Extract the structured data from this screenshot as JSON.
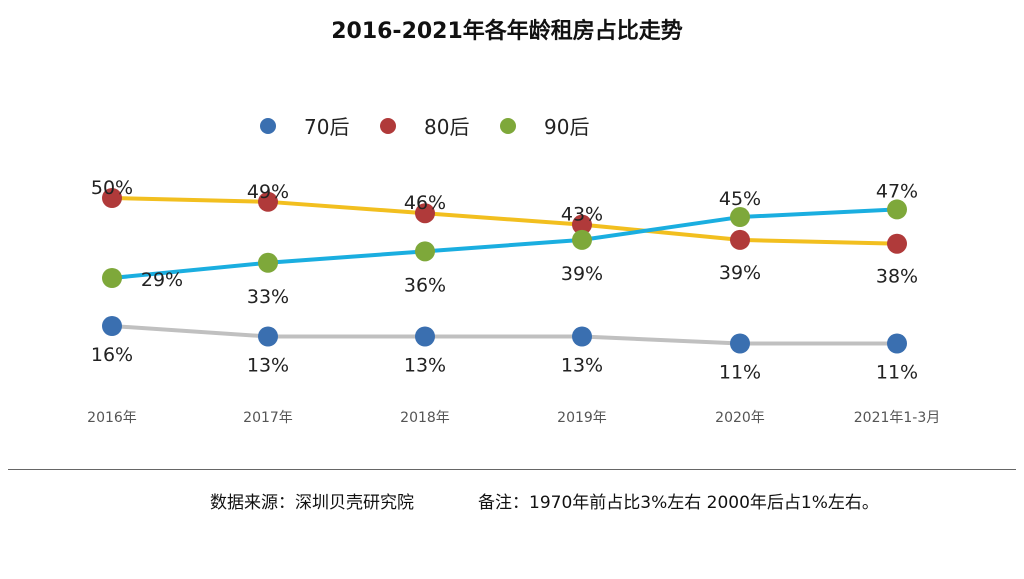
{
  "footer": {
    "source": "数据来源：深圳贝壳研究院",
    "note": "备注：1970年前占比3%左右  2000年后占1%左右。"
  },
  "chart_data": {
    "type": "line",
    "title": "2016-2021年各年龄租房占比走势",
    "categories": [
      "2016年",
      "2017年",
      "2018年",
      "2019年",
      "2020年",
      "2021年1-3月"
    ],
    "legend_placement": "top",
    "grid": false,
    "series": [
      {
        "name": "70后",
        "values": [
          16,
          13,
          13,
          13,
          11,
          11
        ],
        "labels": [
          "16%",
          "13%",
          "13%",
          "13%",
          "11%",
          "11%"
        ],
        "marker_color": "#3a6fb0",
        "line_color": "#c0c0c0"
      },
      {
        "name": "80后",
        "values": [
          50,
          49,
          46,
          43,
          39,
          38
        ],
        "labels": [
          "50%",
          "49%",
          "46%",
          "43%",
          "39%",
          "38%"
        ],
        "marker_color": "#b03a3a",
        "line_color": "#f2bf1f"
      },
      {
        "name": "90后",
        "values": [
          29,
          33,
          36,
          39,
          45,
          47
        ],
        "labels": [
          "29%",
          "33%",
          "36%",
          "39%",
          "45%",
          "47%"
        ],
        "marker_color": "#7ea83a",
        "line_color": "#1aaee0"
      }
    ]
  }
}
